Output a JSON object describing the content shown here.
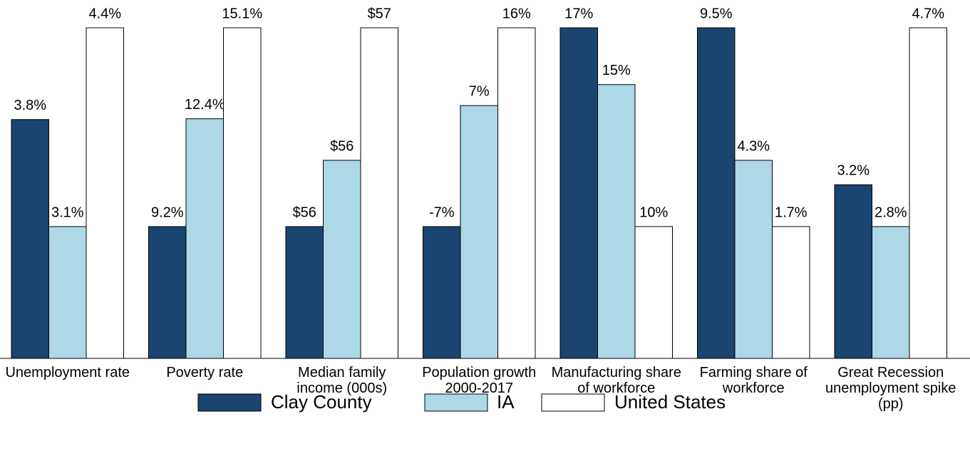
{
  "chart_data": {
    "type": "bar",
    "categories": [
      "Unemployment rate",
      "Poverty rate",
      "Median family income (000s)",
      "Population growth 2000-2017",
      "Manufacturing share of workforce",
      "Farming share of workforce",
      "Great Recession unemployment spike (pp)"
    ],
    "series": [
      {
        "name": "Clay County",
        "color": "#1a4570",
        "values": [
          3.8,
          9.2,
          55.6,
          -7,
          17,
          9.5,
          3.2
        ],
        "value_labels": [
          "3.8%",
          "9.2%",
          "$56",
          "-7%",
          "17%",
          "9.5%",
          "3.2%"
        ]
      },
      {
        "name": "IA",
        "color": "#add8e6",
        "values": [
          3.1,
          12.4,
          56.1,
          7,
          15,
          4.3,
          2.8
        ],
        "value_labels": [
          "3.1%",
          "12.4%",
          "$56",
          "7%",
          "15%",
          "4.3%",
          "2.8%"
        ]
      },
      {
        "name": "United States",
        "color": "#ffffff",
        "values": [
          4.4,
          15.1,
          57.1,
          16,
          10,
          1.7,
          4.7
        ],
        "value_labels": [
          "4.4%",
          "15.1%",
          "$57",
          "16%",
          "10%",
          "1.7%",
          "4.7%"
        ]
      }
    ],
    "legend": "bottom"
  }
}
